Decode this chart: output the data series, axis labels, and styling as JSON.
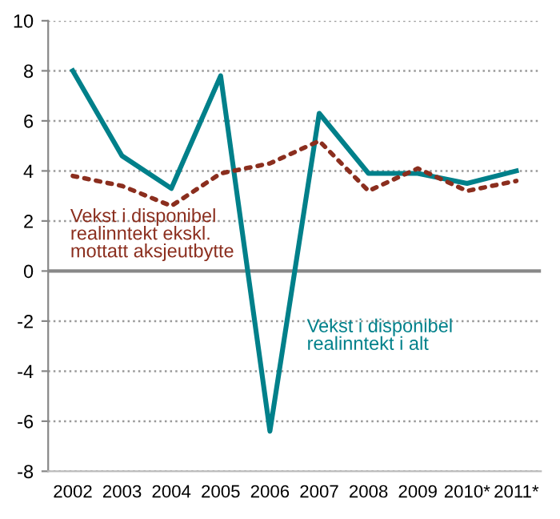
{
  "chart_data": {
    "type": "line",
    "categories": [
      "2002",
      "2003",
      "2004",
      "2005",
      "2006",
      "2007",
      "2008",
      "2009",
      "2010*",
      "2011*"
    ],
    "series": [
      {
        "name": "Vekst i disponibel\nrealinntekt i alt",
        "color": "#00808a",
        "line_style": "solid",
        "values": [
          8.0,
          4.6,
          3.3,
          7.8,
          -6.4,
          6.3,
          3.9,
          3.9,
          3.5,
          4.0
        ]
      },
      {
        "name": "Vekst i disponibel\nrealinntekt ekskl.\nmottatt aksjeutbytte",
        "color": "#8b2e1e",
        "line_style": "dotted",
        "values": [
          3.8,
          3.4,
          2.6,
          3.9,
          4.3,
          5.2,
          3.2,
          4.1,
          3.2,
          3.6
        ]
      }
    ],
    "ylim": [
      -8,
      10
    ],
    "yticks": [
      -8,
      -6,
      -4,
      -2,
      0,
      2,
      4,
      6,
      8,
      10
    ],
    "grid": "y",
    "legend": false,
    "marker": "none",
    "ref_lines": [
      {
        "axis": "y",
        "value": 0,
        "color": "#888888",
        "line_style": "solid"
      }
    ]
  }
}
